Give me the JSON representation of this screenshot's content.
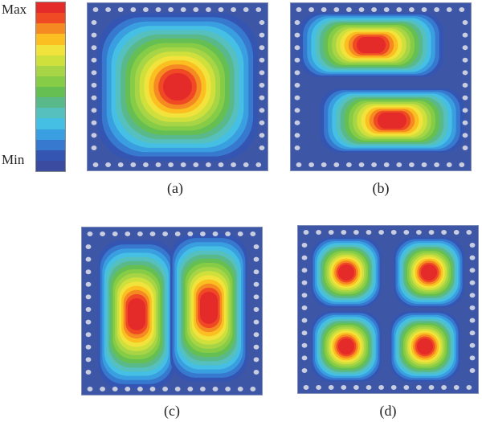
{
  "legend": {
    "max_label": "Max",
    "min_label": "Min",
    "colors": [
      "#e52a2a",
      "#ef4a24",
      "#f68a22",
      "#fbbf21",
      "#f2e33c",
      "#cfe03d",
      "#a8d545",
      "#86cc47",
      "#66bf53",
      "#5ab98a",
      "#55c0be",
      "#45bfe3",
      "#3a9fe0",
      "#3679cf",
      "#3555b2",
      "#3a4ba0"
    ]
  },
  "panels": [
    {
      "caption": "(a)"
    },
    {
      "caption": "(b)"
    },
    {
      "caption": "(c)"
    },
    {
      "caption": "(d)"
    }
  ]
}
